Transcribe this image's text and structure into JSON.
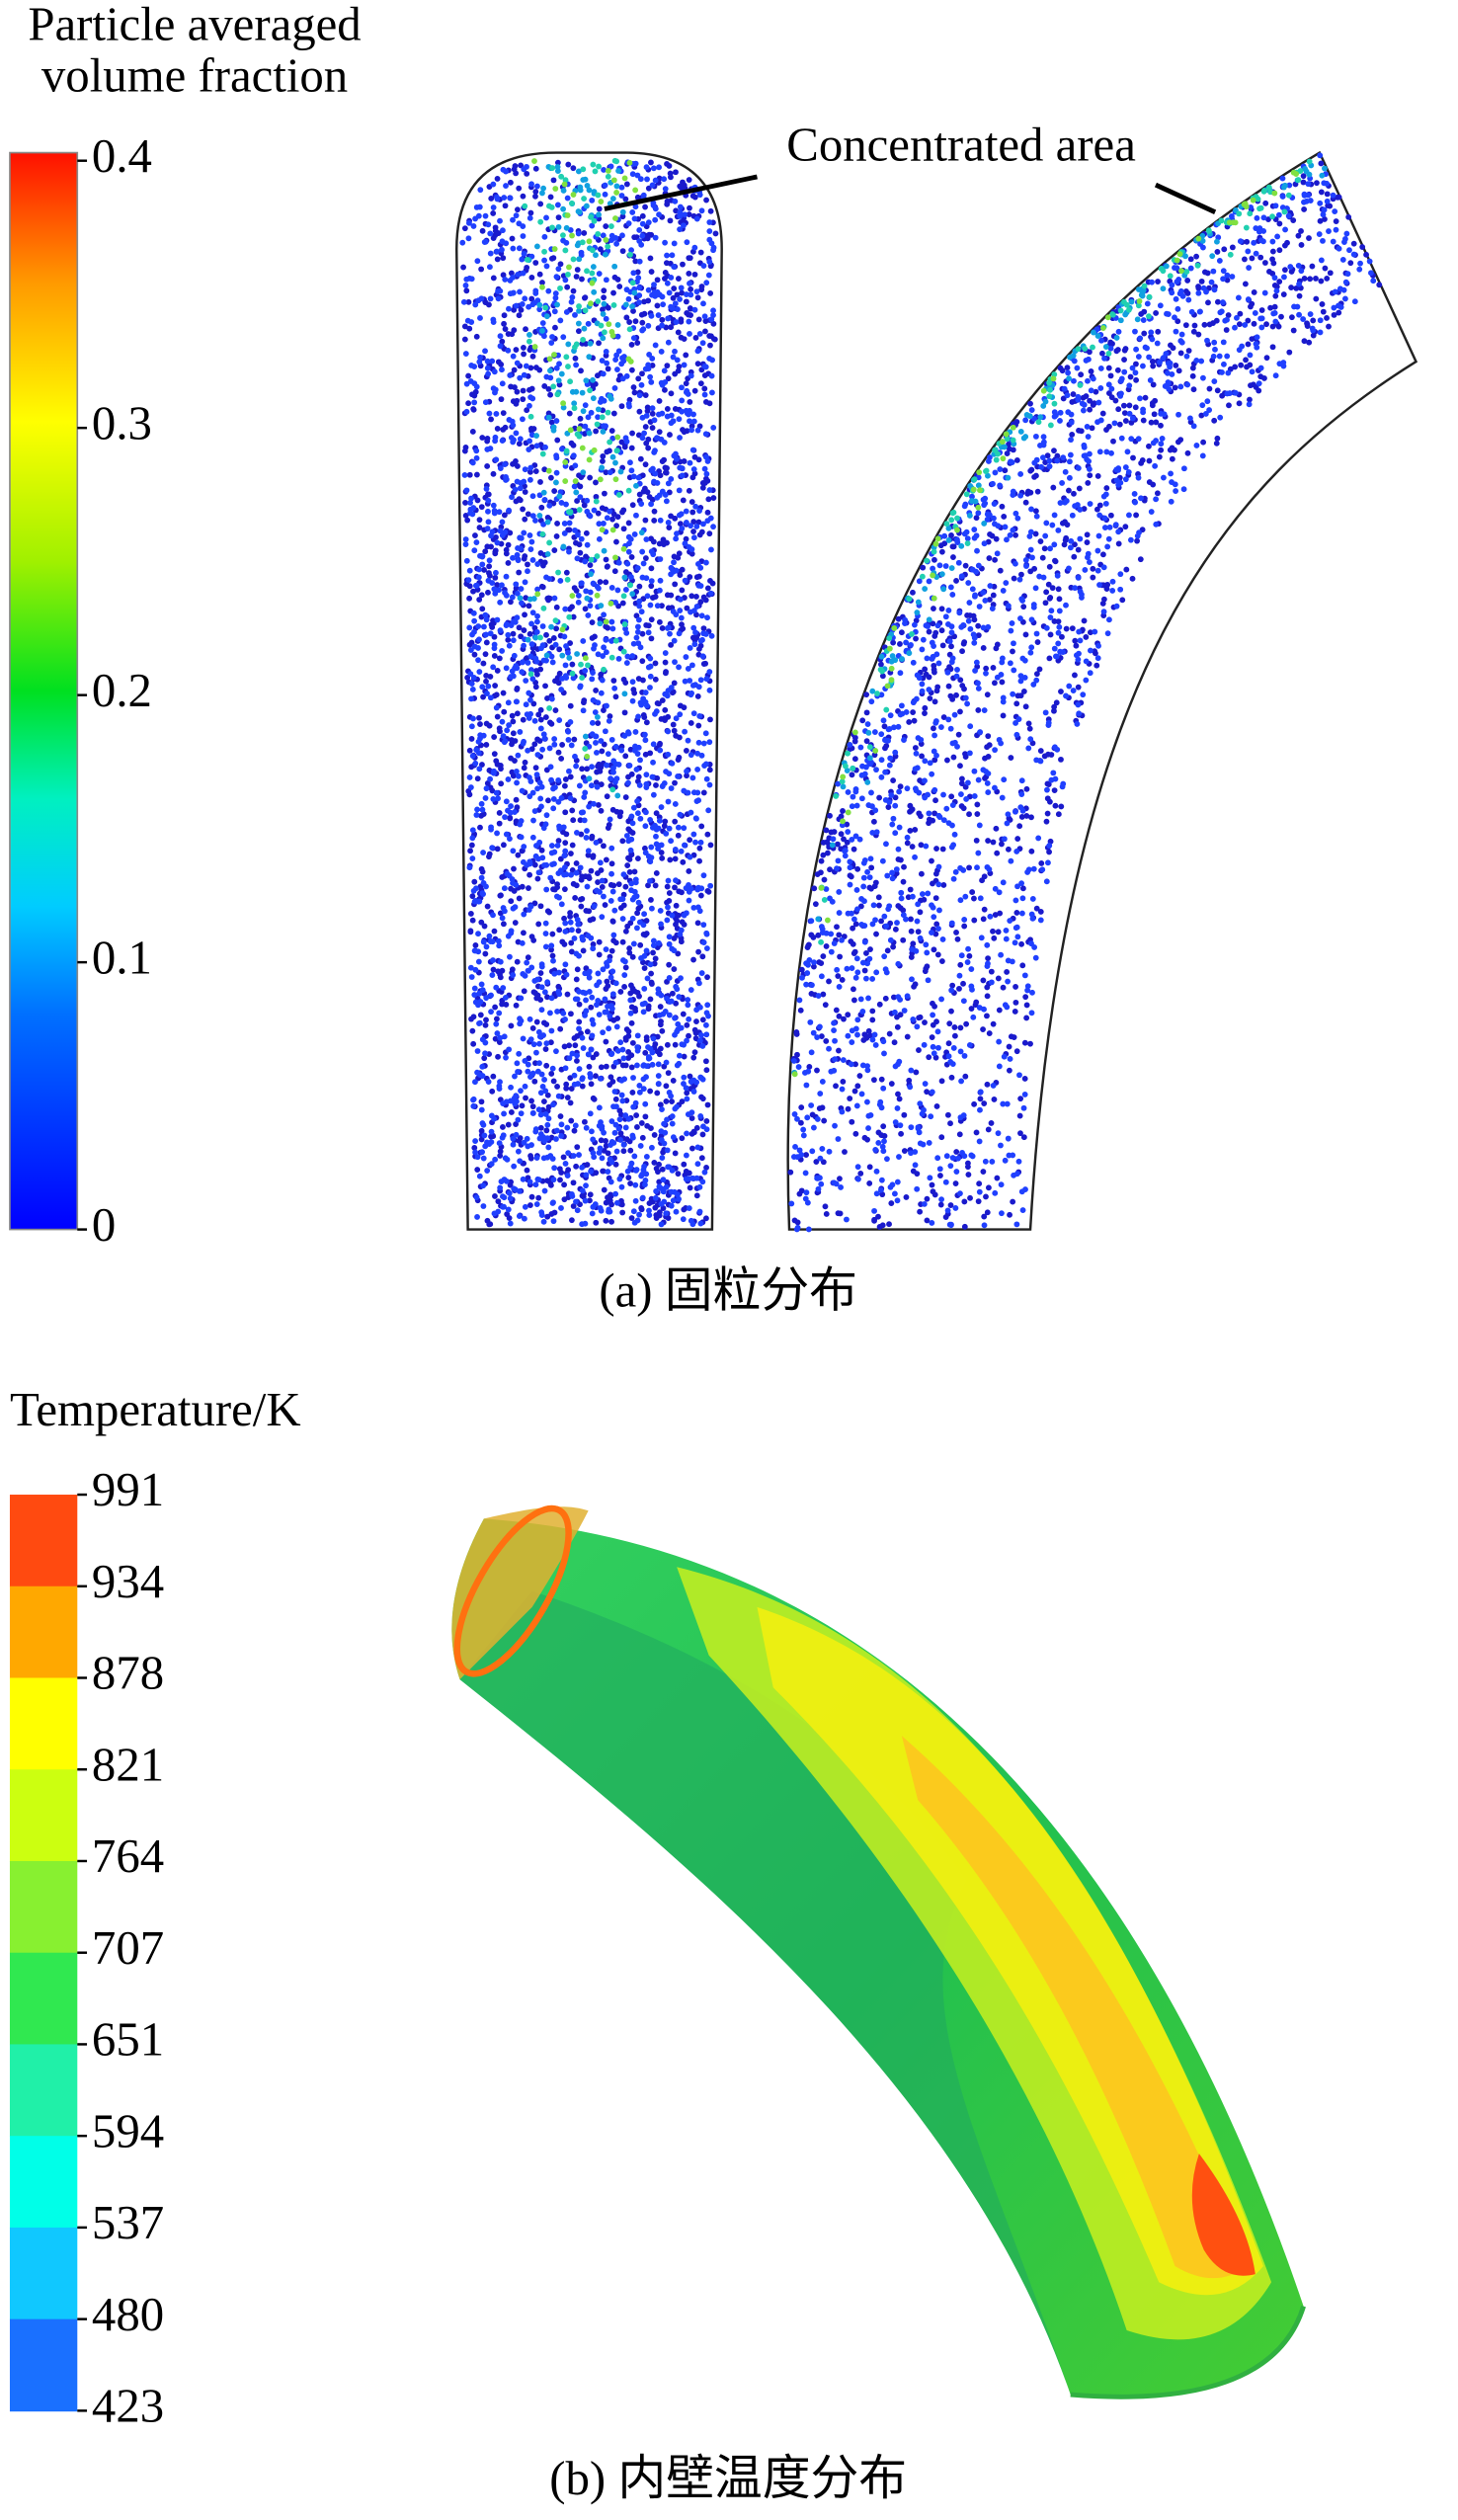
{
  "panel_a": {
    "legend": {
      "title": [
        "Particle averaged",
        "volume fraction"
      ],
      "ticks": [
        "0.4",
        "0.3",
        "0.2",
        "0.1",
        "0"
      ]
    },
    "annotation": "Concentrated area",
    "caption": "(a) 固粒分布"
  },
  "panel_b": {
    "legend": {
      "title": "Temperature/K",
      "ticks": [
        "991",
        "934",
        "878",
        "821",
        "764",
        "707",
        "651",
        "594",
        "537",
        "480",
        "423"
      ]
    },
    "caption": "(b) 内壁温度分布"
  }
}
